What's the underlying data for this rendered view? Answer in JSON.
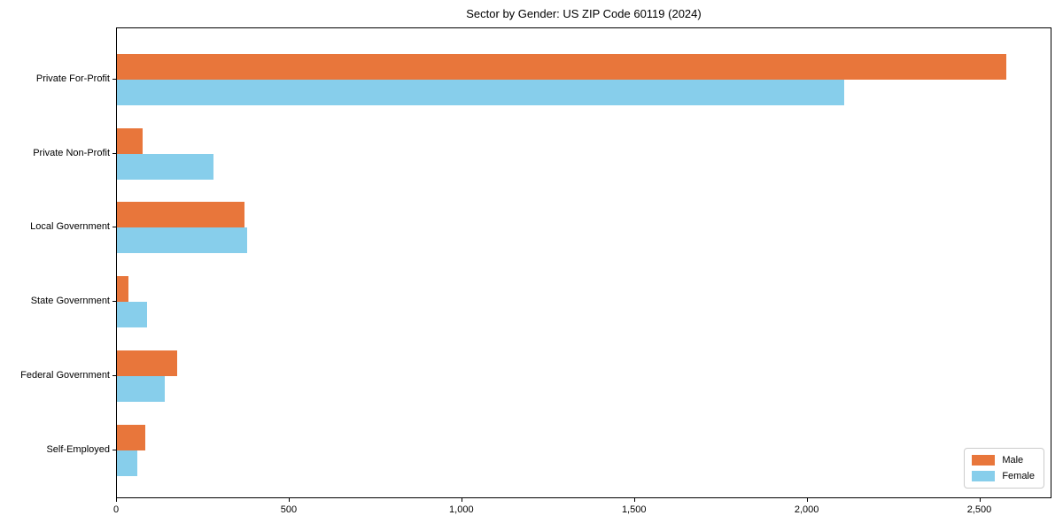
{
  "title": "Sector by Gender: US ZIP Code 60119 (2024)",
  "chart_data": {
    "type": "bar",
    "orientation": "horizontal",
    "title": "Sector by Gender: US ZIP Code 60119 (2024)",
    "xlabel": "",
    "ylabel": "",
    "categories": [
      "Private For-Profit",
      "Private Non-Profit",
      "Local Government",
      "State Government",
      "Federal Government",
      "Self-Employed"
    ],
    "series": [
      {
        "name": "Male",
        "color": "#e8763b",
        "values": [
          2580,
          75,
          370,
          33,
          175,
          83
        ]
      },
      {
        "name": "Female",
        "color": "#87ceeb",
        "values": [
          2110,
          280,
          378,
          88,
          140,
          59
        ]
      }
    ],
    "xlim": [
      0,
      2709
    ],
    "xticks": [
      0,
      500,
      1000,
      1500,
      2000,
      2500
    ],
    "xtick_labels": [
      "0",
      "500",
      "1,000",
      "1,500",
      "2,000",
      "2,500"
    ],
    "grid": false,
    "legend": {
      "position": "lower right",
      "entries": [
        {
          "label": "Male",
          "color": "#e8763b"
        },
        {
          "label": "Female",
          "color": "#87ceeb"
        }
      ]
    }
  }
}
